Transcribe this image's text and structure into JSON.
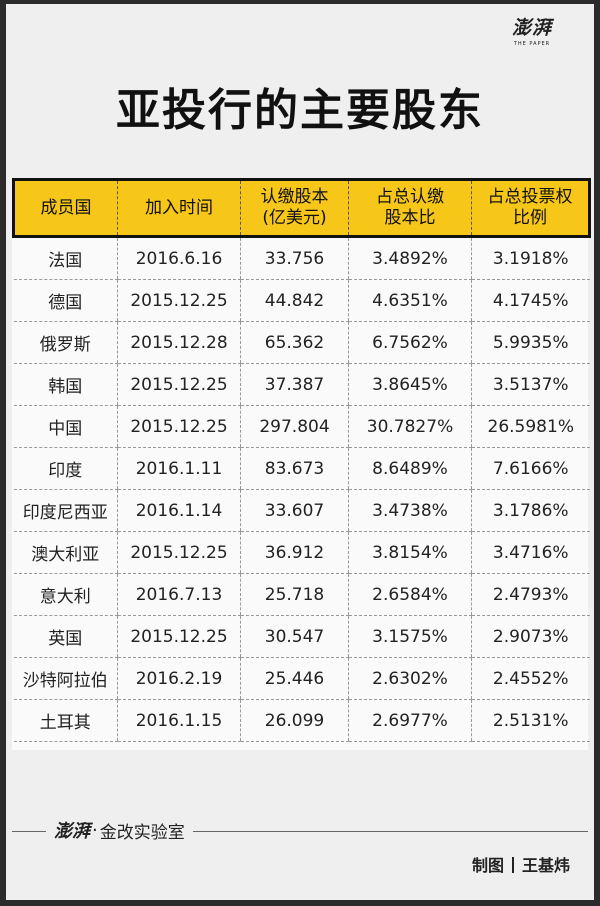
{
  "brand": {
    "logo_text": "澎湃",
    "logo_sub": "THE PAPER"
  },
  "title": "亚投行的主要股东",
  "table": {
    "headers": [
      [
        "成员国"
      ],
      [
        "加入时间"
      ],
      [
        "认缴股本",
        "(亿美元)"
      ],
      [
        "占总认缴",
        "股本比"
      ],
      [
        "占总投票权",
        "比例"
      ]
    ],
    "rows": [
      [
        "法国",
        "2016.6.16",
        "33.756",
        "3.4892%",
        "3.1918%"
      ],
      [
        "德国",
        "2015.12.25",
        "44.842",
        "4.6351%",
        "4.1745%"
      ],
      [
        "俄罗斯",
        "2015.12.28",
        "65.362",
        "6.7562%",
        "5.9935%"
      ],
      [
        "韩国",
        "2015.12.25",
        "37.387",
        "3.8645%",
        "3.5137%"
      ],
      [
        "中国",
        "2015.12.25",
        "297.804",
        "30.7827%",
        "26.5981%"
      ],
      [
        "印度",
        "2016.1.11",
        "83.673",
        "8.6489%",
        "7.6166%"
      ],
      [
        "印度尼西亚",
        "2016.1.14",
        "33.607",
        "3.4738%",
        "3.1786%"
      ],
      [
        "澳大利亚",
        "2015.12.25",
        "36.912",
        "3.8154%",
        "3.4716%"
      ],
      [
        "意大利",
        "2016.7.13",
        "25.718",
        "2.6584%",
        "2.4793%"
      ],
      [
        "英国",
        "2015.12.25",
        "30.547",
        "3.1575%",
        "2.9073%"
      ],
      [
        "沙特阿拉伯",
        "2016.2.19",
        "25.446",
        "2.6302%",
        "2.4552%"
      ],
      [
        "土耳其",
        "2016.1.15",
        "26.099",
        "2.6977%",
        "2.5131%"
      ]
    ]
  },
  "footer": {
    "brand_mark": "澎湃",
    "dot": "·",
    "lab_name": "金改实验室",
    "credit_label": "制图",
    "credit_name": "王基炜"
  },
  "colors": {
    "header_bg": "#f6c619",
    "page_bg": "#efefef",
    "frame": "#2b2b2b"
  }
}
